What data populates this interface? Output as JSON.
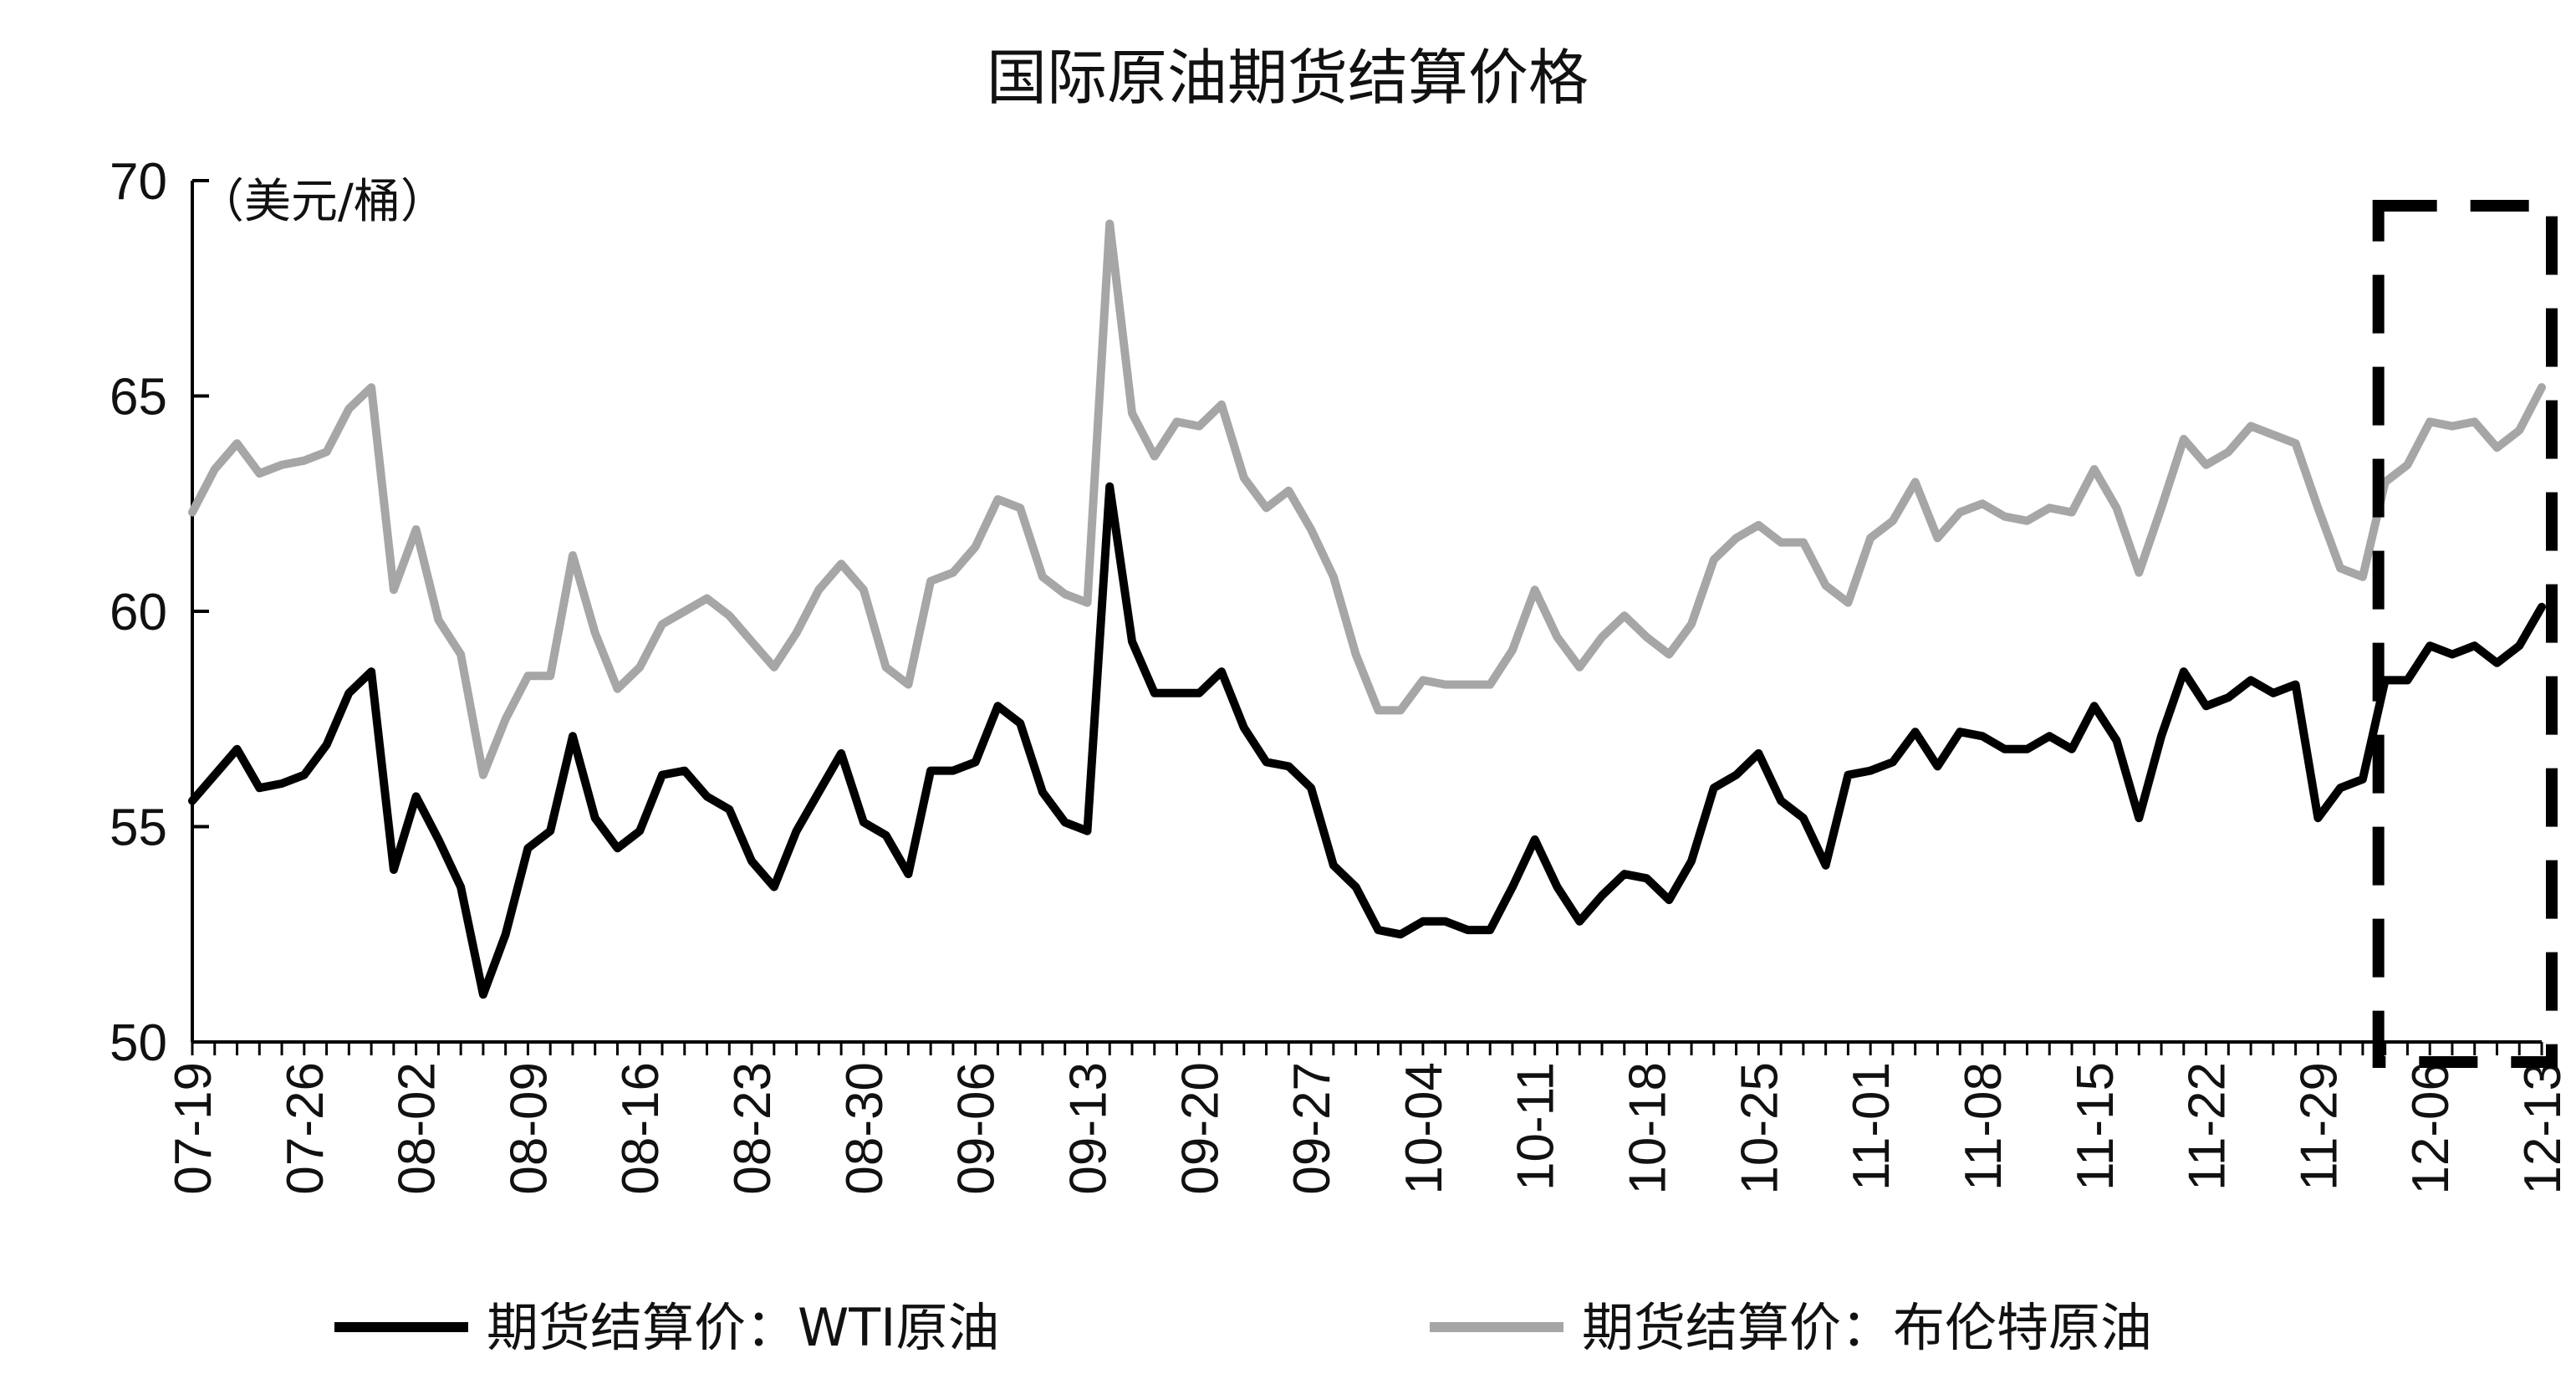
{
  "chart_data": {
    "type": "line",
    "title": "国际原油期货结算价格",
    "unit_label": "（美元/桶）",
    "xlabel": "",
    "ylabel": "",
    "ylim": [
      50,
      70
    ],
    "yticks": [
      "50",
      "55",
      "60",
      "65",
      "70"
    ],
    "xtick_labels": [
      "07-19",
      "07-26",
      "08-02",
      "08-09",
      "08-16",
      "08-23",
      "08-30",
      "09-06",
      "09-13",
      "09-20",
      "09-27",
      "10-04",
      "10-11",
      "10-18",
      "10-25",
      "11-01",
      "11-08",
      "11-15",
      "11-22",
      "11-29",
      "12-06",
      "12-13"
    ],
    "legend_position": "bottom",
    "grid": false,
    "highlight_box": {
      "from": "12-04",
      "to": "12-13",
      "style": "dashed"
    },
    "x": [
      "07-19",
      "07-22",
      "07-23",
      "07-24",
      "07-25",
      "07-26",
      "07-29",
      "07-30",
      "07-31",
      "08-01",
      "08-02",
      "08-05",
      "08-06",
      "08-07",
      "08-08",
      "08-09",
      "08-12",
      "08-13",
      "08-14",
      "08-15",
      "08-16",
      "08-19",
      "08-20",
      "08-21",
      "08-22",
      "08-23",
      "08-26",
      "08-27",
      "08-28",
      "08-29",
      "08-30",
      "09-02",
      "09-03",
      "09-04",
      "09-05",
      "09-06",
      "09-09",
      "09-10",
      "09-11",
      "09-12",
      "09-13",
      "09-16",
      "09-17",
      "09-18",
      "09-19",
      "09-20",
      "09-23",
      "09-24",
      "09-25",
      "09-26",
      "09-27",
      "09-30",
      "10-01",
      "10-02",
      "10-03",
      "10-04",
      "10-07",
      "10-08",
      "10-09",
      "10-10",
      "10-11",
      "10-14",
      "10-15",
      "10-16",
      "10-17",
      "10-18",
      "10-21",
      "10-22",
      "10-23",
      "10-24",
      "10-25",
      "10-28",
      "10-29",
      "10-30",
      "10-31",
      "11-01",
      "11-04",
      "11-05",
      "11-06",
      "11-07",
      "11-08",
      "11-11",
      "11-12",
      "11-13",
      "11-14",
      "11-15",
      "11-18",
      "11-19",
      "11-20",
      "11-21",
      "11-22",
      "11-25",
      "11-26",
      "11-27",
      "11-28",
      "11-29",
      "12-02",
      "12-03",
      "12-04",
      "12-05",
      "12-06",
      "12-09",
      "12-10",
      "12-11",
      "12-12",
      "12-13"
    ],
    "series": [
      {
        "name": "期货结算价：WTI原油",
        "color": "#000000",
        "values": [
          55.6,
          56.2,
          56.8,
          55.9,
          56.0,
          56.2,
          56.9,
          58.1,
          58.6,
          54.0,
          55.7,
          54.7,
          53.6,
          51.1,
          52.5,
          54.5,
          54.9,
          57.1,
          55.2,
          54.5,
          54.9,
          56.2,
          56.3,
          55.7,
          55.4,
          54.2,
          53.6,
          54.9,
          55.8,
          56.7,
          55.1,
          54.8,
          53.9,
          56.3,
          56.3,
          56.5,
          57.8,
          57.4,
          55.8,
          55.1,
          54.9,
          62.9,
          59.3,
          58.1,
          58.1,
          58.1,
          58.6,
          57.3,
          56.5,
          56.4,
          55.9,
          54.1,
          53.6,
          52.6,
          52.5,
          52.8,
          52.8,
          52.6,
          52.6,
          53.6,
          54.7,
          53.6,
          52.8,
          53.4,
          53.9,
          53.8,
          53.3,
          54.2,
          55.9,
          56.2,
          56.7,
          55.6,
          55.2,
          54.1,
          56.2,
          56.3,
          56.5,
          57.2,
          56.4,
          57.2,
          57.1,
          56.8,
          56.8,
          57.1,
          56.8,
          57.8,
          57.0,
          55.2,
          57.1,
          58.6,
          57.8,
          58.0,
          58.4,
          58.1,
          58.3,
          55.2,
          55.9,
          56.1,
          58.4,
          58.4,
          59.2,
          59.0,
          59.2,
          58.8,
          59.2,
          60.1
        ]
      },
      {
        "name": "期货结算价：布伦特原油",
        "color": "#a6a6a6",
        "values": [
          62.3,
          63.3,
          63.9,
          63.2,
          63.4,
          63.5,
          63.7,
          64.7,
          65.2,
          60.5,
          61.9,
          59.8,
          59.0,
          56.2,
          57.5,
          58.5,
          58.5,
          61.3,
          59.5,
          58.2,
          58.7,
          59.7,
          60.0,
          60.3,
          59.9,
          59.3,
          58.7,
          59.5,
          60.5,
          61.1,
          60.5,
          58.7,
          58.3,
          60.7,
          60.9,
          61.5,
          62.6,
          62.4,
          60.8,
          60.4,
          60.2,
          69.0,
          64.6,
          63.6,
          64.4,
          64.3,
          64.8,
          63.1,
          62.4,
          62.8,
          61.9,
          60.8,
          59.0,
          57.7,
          57.7,
          58.4,
          58.3,
          58.3,
          58.3,
          59.1,
          60.5,
          59.4,
          58.7,
          59.4,
          59.9,
          59.4,
          59.0,
          59.7,
          61.2,
          61.7,
          62.0,
          61.6,
          61.6,
          60.6,
          60.2,
          61.7,
          62.1,
          63.0,
          61.7,
          62.3,
          62.5,
          62.2,
          62.1,
          62.4,
          62.3,
          63.3,
          62.4,
          60.9,
          62.4,
          64.0,
          63.4,
          63.7,
          64.3,
          64.1,
          63.9,
          62.4,
          61.0,
          60.8,
          63.0,
          63.4,
          64.4,
          64.3,
          64.4,
          63.8,
          64.2,
          65.2
        ]
      }
    ]
  }
}
